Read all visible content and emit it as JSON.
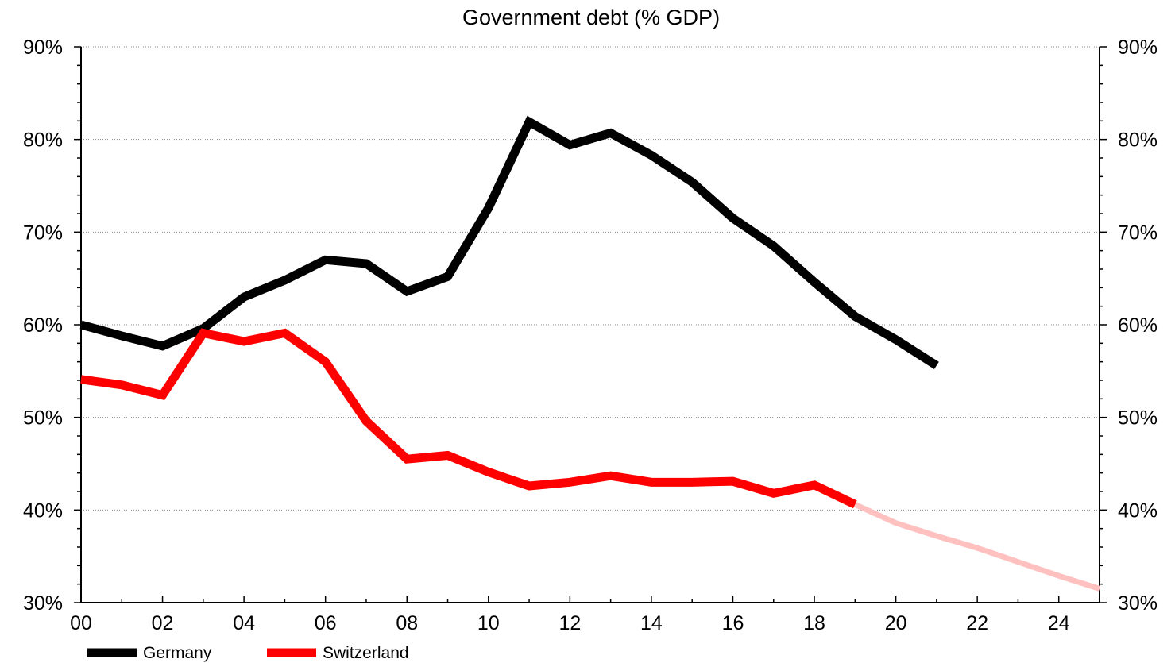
{
  "chart_data": {
    "type": "line",
    "title": "Government debt (% GDP)",
    "xlabel": "",
    "ylabel": "",
    "xlim": [
      2000,
      2025
    ],
    "ylim": [
      30,
      90
    ],
    "y_ticks": [
      30,
      40,
      50,
      60,
      70,
      80,
      90
    ],
    "y_tick_labels": [
      "30%",
      "40%",
      "50%",
      "60%",
      "70%",
      "80%",
      "90%"
    ],
    "x_ticks": [
      2000,
      2002,
      2004,
      2006,
      2008,
      2010,
      2012,
      2014,
      2016,
      2018,
      2020,
      2022,
      2024
    ],
    "x_tick_labels": [
      "00",
      "02",
      "04",
      "06",
      "08",
      "10",
      "12",
      "14",
      "16",
      "18",
      "20",
      "22",
      "24"
    ],
    "grid": true,
    "secondary_y_axis": true,
    "legend_position": "bottom-left",
    "series": [
      {
        "name": "Germany",
        "color": "#000000",
        "x": [
          2000,
          2001,
          2002,
          2003,
          2004,
          2005,
          2006,
          2007,
          2008,
          2009,
          2010,
          2011,
          2012,
          2013,
          2014,
          2015,
          2016,
          2017,
          2018,
          2019,
          2020,
          2021
        ],
        "values": [
          60.0,
          58.8,
          57.7,
          59.6,
          63.0,
          64.8,
          67.0,
          66.6,
          63.6,
          65.2,
          72.6,
          81.9,
          79.4,
          80.7,
          78.3,
          75.4,
          71.5,
          68.5,
          64.6,
          60.9,
          58.4,
          55.6
        ]
      },
      {
        "name": "Switzerland",
        "color": "#ff0000",
        "x": [
          2000,
          2001,
          2002,
          2003,
          2004,
          2005,
          2006,
          2007,
          2008,
          2009,
          2010,
          2011,
          2012,
          2013,
          2014,
          2015,
          2016,
          2017,
          2018,
          2019
        ],
        "values": [
          54.1,
          53.5,
          52.4,
          59.1,
          58.2,
          59.1,
          56.0,
          49.6,
          45.5,
          45.9,
          44.1,
          42.6,
          43.0,
          43.7,
          43.0,
          43.0,
          43.1,
          41.8,
          42.7,
          40.6
        ]
      }
    ],
    "forecast": {
      "series": "Switzerland",
      "color": "#ffc0c0",
      "x": [
        2019,
        2020,
        2021,
        2022,
        2023,
        2024,
        2025
      ],
      "values": [
        40.6,
        38.6,
        37.2,
        35.9,
        34.4,
        32.9,
        31.5
      ]
    }
  }
}
